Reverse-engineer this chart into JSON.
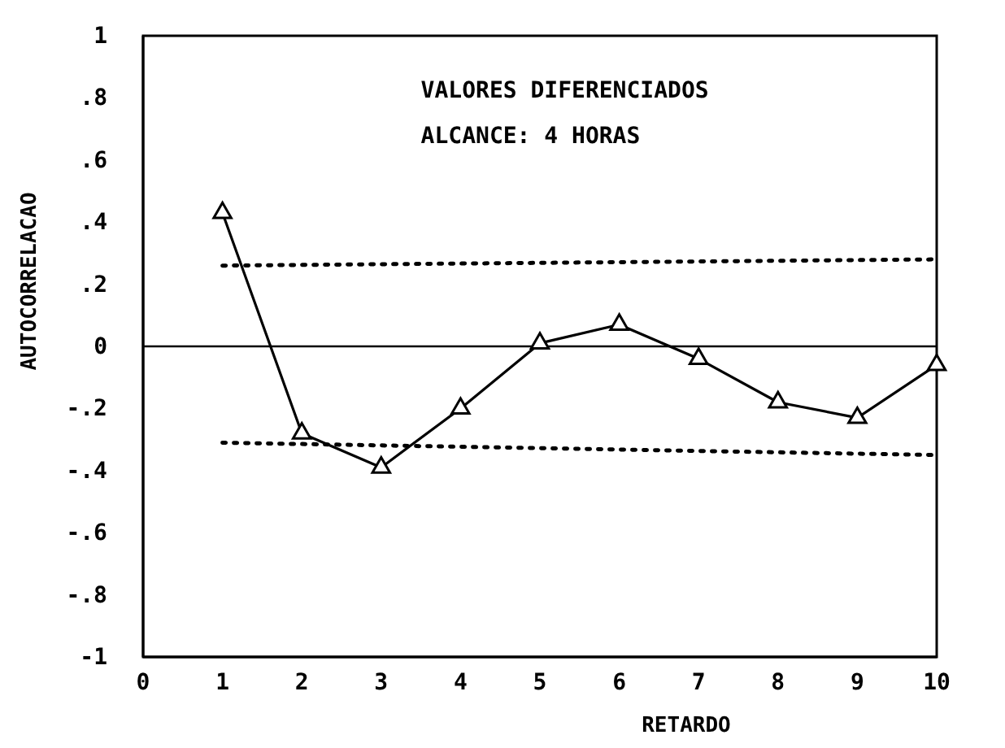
{
  "chart_data": {
    "type": "line",
    "xlabel": "RETARDO",
    "ylabel": "AUTOCORRELACAO",
    "annotations": [
      "VALORES DIFERENCIADOS",
      "ALCANCE: 4 HORAS"
    ],
    "xlim": [
      0,
      10
    ],
    "ylim": [
      -1,
      1
    ],
    "xticks": [
      0,
      1,
      2,
      3,
      4,
      5,
      6,
      7,
      8,
      9,
      10
    ],
    "yticks": [
      {
        "value": -1,
        "label": "-1"
      },
      {
        "value": -0.8,
        "label": "-.8"
      },
      {
        "value": -0.6,
        "label": "-.6"
      },
      {
        "value": -0.4,
        "label": "-.4"
      },
      {
        "value": -0.2,
        "label": "-.2"
      },
      {
        "value": 0,
        "label": "0"
      },
      {
        "value": 0.2,
        "label": ".2"
      },
      {
        "value": 0.4,
        "label": ".4"
      },
      {
        "value": 0.6,
        "label": ".6"
      },
      {
        "value": 0.8,
        "label": ".8"
      },
      {
        "value": 1,
        "label": "1"
      }
    ],
    "grid": false,
    "ref_lines": [
      {
        "axis": "y",
        "value": 0,
        "color": "#000000",
        "line_style": "solid"
      }
    ],
    "series": [
      {
        "color": "#000000",
        "x": [
          1,
          2,
          3,
          4,
          5,
          6,
          7,
          8,
          9,
          10
        ],
        "values": [
          0.43,
          -0.28,
          -0.39,
          -0.2,
          0.01,
          0.07,
          -0.04,
          -0.18,
          -0.23,
          -0.06
        ],
        "marker": "triangle",
        "line_style": "solid"
      },
      {
        "color": "#000000",
        "x": [
          1,
          10
        ],
        "values": [
          0.26,
          0.28
        ],
        "marker": "none",
        "line_style": "dotted"
      },
      {
        "color": "#000000",
        "x": [
          1,
          10
        ],
        "values": [
          -0.31,
          -0.35
        ],
        "marker": "none",
        "line_style": "dotted"
      }
    ]
  }
}
